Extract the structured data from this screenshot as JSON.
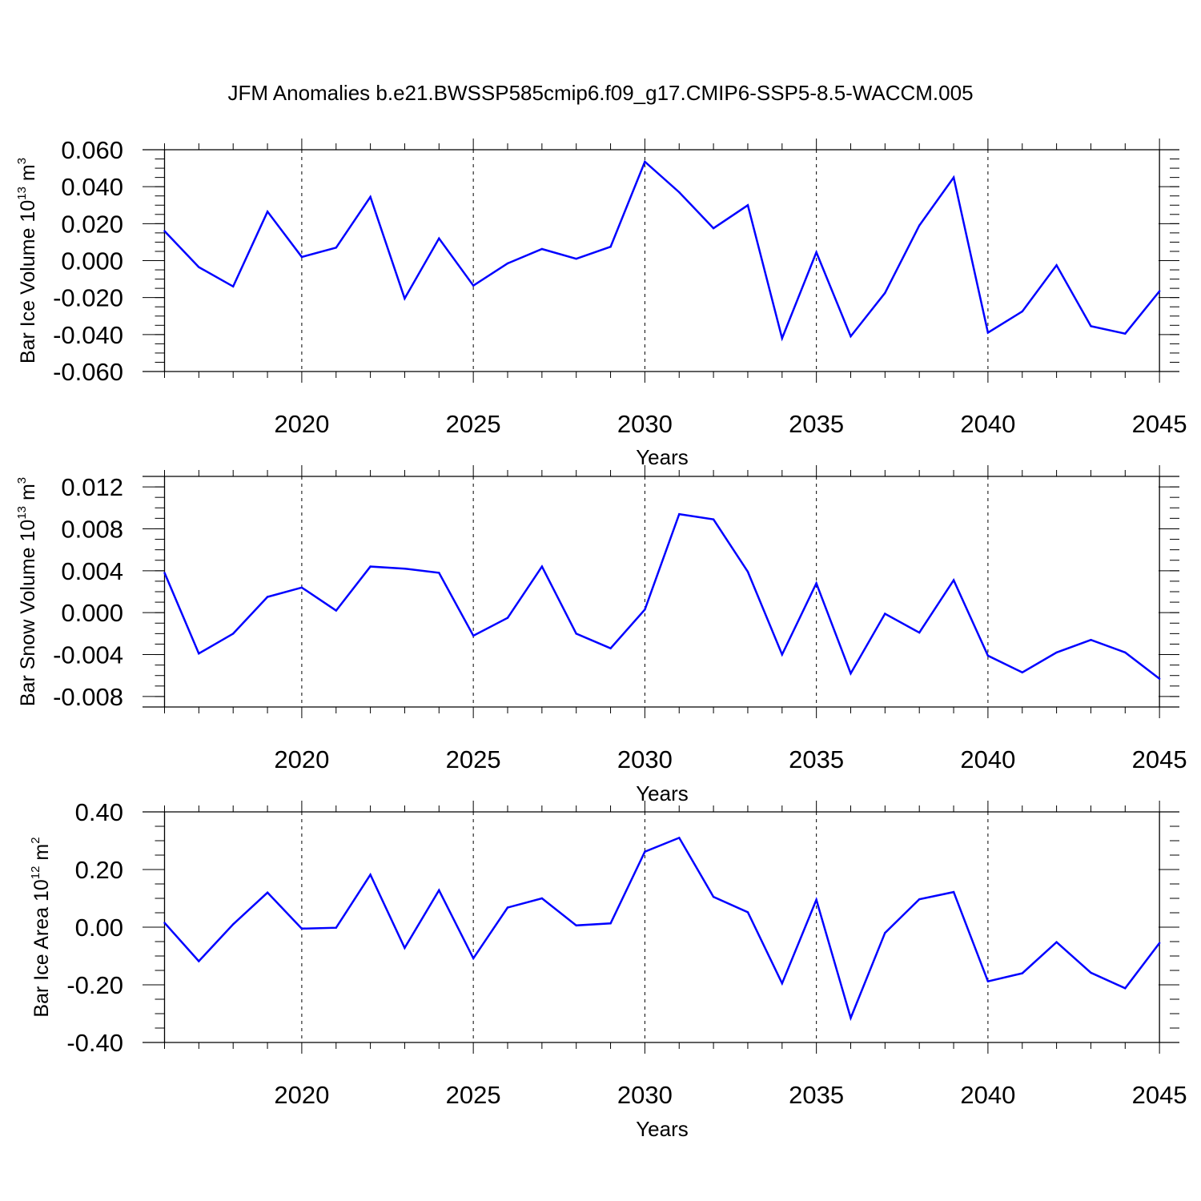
{
  "title": "JFM Anomalies b.e21.BWSSP585cmip6.f09_g17.CMIP6-SSP5-8.5-WACCM.005",
  "colors": {
    "line": "#0000ff",
    "axis": "#000000",
    "grid": "#000000"
  },
  "chart_data": [
    {
      "type": "line",
      "xlabel": "Years",
      "ylabel": {
        "text": "Bar Ice Volume 10",
        "exp": "13",
        "unit": " m",
        "unit_exp": "3"
      },
      "xlim": [
        2016,
        2045
      ],
      "ylim": [
        -0.06,
        0.06
      ],
      "x_ticks": [
        "2020",
        "2025",
        "2030",
        "2035",
        "2040",
        "2045"
      ],
      "y_ticks": [
        "0.060",
        "0.040",
        "0.020",
        "0.000",
        "-0.020",
        "-0.040",
        "-0.060"
      ],
      "y_tick_values": [
        0.06,
        0.04,
        0.02,
        0.0,
        -0.02,
        -0.04,
        -0.06
      ],
      "y_minor_step": 0.005,
      "grid": "dashed vertical lines at labeled years",
      "x": [
        2016,
        2017,
        2018,
        2019,
        2020,
        2021,
        2022,
        2023,
        2024,
        2025,
        2026,
        2027,
        2028,
        2029,
        2030,
        2031,
        2032,
        2033,
        2034,
        2035,
        2036,
        2037,
        2038,
        2039,
        2040,
        2041,
        2042,
        2043,
        2044,
        2045
      ],
      "values": [
        0.016,
        -0.0035,
        -0.014,
        0.0265,
        0.002,
        0.007,
        0.0345,
        -0.0205,
        0.012,
        -0.0135,
        -0.0015,
        0.0063,
        0.001,
        0.0075,
        0.0535,
        0.037,
        0.0175,
        0.03,
        -0.042,
        0.0045,
        -0.041,
        -0.0175,
        0.019,
        0.045,
        -0.039,
        -0.0275,
        -0.0025,
        -0.0355,
        -0.0395,
        -0.0165
      ]
    },
    {
      "type": "line",
      "xlabel": "Years",
      "ylabel": {
        "text": "Bar Snow Volume 10",
        "exp": "13",
        "unit": " m",
        "unit_exp": "3"
      },
      "xlim": [
        2016,
        2045
      ],
      "ylim": [
        -0.009,
        0.013
      ],
      "x_ticks": [
        "2020",
        "2025",
        "2030",
        "2035",
        "2040",
        "2045"
      ],
      "y_ticks": [
        "0.012",
        "0.008",
        "0.004",
        "0.000",
        "-0.004",
        "-0.008"
      ],
      "y_tick_values": [
        0.012,
        0.008,
        0.004,
        0.0,
        -0.004,
        -0.008
      ],
      "y_minor_step": 0.001,
      "grid": "dashed vertical lines at labeled years",
      "x": [
        2016,
        2017,
        2018,
        2019,
        2020,
        2021,
        2022,
        2023,
        2024,
        2025,
        2026,
        2027,
        2028,
        2029,
        2030,
        2031,
        2032,
        2033,
        2034,
        2035,
        2036,
        2037,
        2038,
        2039,
        2040,
        2041,
        2042,
        2043,
        2044,
        2045
      ],
      "values": [
        0.0038,
        -0.0039,
        -0.002,
        0.0015,
        0.0024,
        0.0002,
        0.0044,
        0.0042,
        0.0038,
        -0.0022,
        -0.0005,
        0.0044,
        -0.002,
        -0.0034,
        0.0003,
        0.0094,
        0.0089,
        0.0039,
        -0.004,
        0.0028,
        -0.0058,
        -0.0001,
        -0.0019,
        0.0031,
        -0.0041,
        -0.0057,
        -0.0038,
        -0.0026,
        -0.0038,
        -0.0063
      ]
    },
    {
      "type": "line",
      "xlabel": "Years",
      "ylabel": {
        "text": "Bar Ice Area 10",
        "exp": "12",
        "unit": " m",
        "unit_exp": "2"
      },
      "xlim": [
        2016,
        2045
      ],
      "ylim": [
        -0.4,
        0.4
      ],
      "x_ticks": [
        "2020",
        "2025",
        "2030",
        "2035",
        "2040",
        "2045"
      ],
      "y_ticks": [
        "0.40",
        "0.20",
        "0.00",
        "-0.20",
        "-0.40"
      ],
      "y_tick_values": [
        0.4,
        0.2,
        0.0,
        -0.2,
        -0.4
      ],
      "y_minor_step": 0.05,
      "grid": "dashed vertical lines at labeled years",
      "x": [
        2016,
        2017,
        2018,
        2019,
        2020,
        2021,
        2022,
        2023,
        2024,
        2025,
        2026,
        2027,
        2028,
        2029,
        2030,
        2031,
        2032,
        2033,
        2034,
        2035,
        2036,
        2037,
        2038,
        2039,
        2040,
        2041,
        2042,
        2043,
        2044,
        2045
      ],
      "values": [
        0.015,
        -0.118,
        0.01,
        0.12,
        -0.005,
        -0.002,
        0.182,
        -0.072,
        0.128,
        -0.108,
        0.068,
        0.1,
        0.006,
        0.013,
        0.262,
        0.31,
        0.105,
        0.052,
        -0.195,
        0.095,
        -0.315,
        -0.02,
        0.097,
        0.122,
        -0.188,
        -0.16,
        -0.052,
        -0.158,
        -0.212,
        -0.055
      ]
    }
  ]
}
